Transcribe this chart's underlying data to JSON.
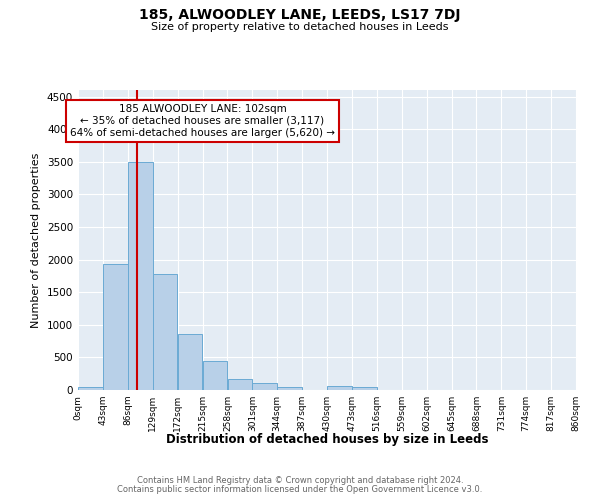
{
  "title": "185, ALWOODLEY LANE, LEEDS, LS17 7DJ",
  "subtitle": "Size of property relative to detached houses in Leeds",
  "xlabel": "Distribution of detached houses by size in Leeds",
  "ylabel": "Number of detached properties",
  "bin_edges": [
    0,
    43,
    86,
    129,
    172,
    215,
    258,
    301,
    344,
    387,
    430,
    473,
    516,
    559,
    602,
    645,
    688,
    731,
    774,
    817,
    860
  ],
  "bar_heights": [
    50,
    1930,
    3500,
    1775,
    860,
    450,
    175,
    100,
    50,
    0,
    60,
    50,
    0,
    0,
    0,
    0,
    0,
    0,
    0,
    0
  ],
  "bar_color": "#b8d0e8",
  "bar_edge_color": "#6aaad4",
  "background_color": "#e4ecf4",
  "red_line_x": 102,
  "annotation_text": "185 ALWOODLEY LANE: 102sqm\n← 35% of detached houses are smaller (3,117)\n64% of semi-detached houses are larger (5,620) →",
  "annotation_box_color": "#ffffff",
  "annotation_box_edge_color": "#cc0000",
  "ylim": [
    0,
    4600
  ],
  "yticks": [
    0,
    500,
    1000,
    1500,
    2000,
    2500,
    3000,
    3500,
    4000,
    4500
  ],
  "tick_labels": [
    "0sqm",
    "43sqm",
    "86sqm",
    "129sqm",
    "172sqm",
    "215sqm",
    "258sqm",
    "301sqm",
    "344sqm",
    "387sqm",
    "430sqm",
    "473sqm",
    "516sqm",
    "559sqm",
    "602sqm",
    "645sqm",
    "688sqm",
    "731sqm",
    "774sqm",
    "817sqm",
    "860sqm"
  ],
  "footnote1": "Contains HM Land Registry data © Crown copyright and database right 2024.",
  "footnote2": "Contains public sector information licensed under the Open Government Licence v3.0."
}
